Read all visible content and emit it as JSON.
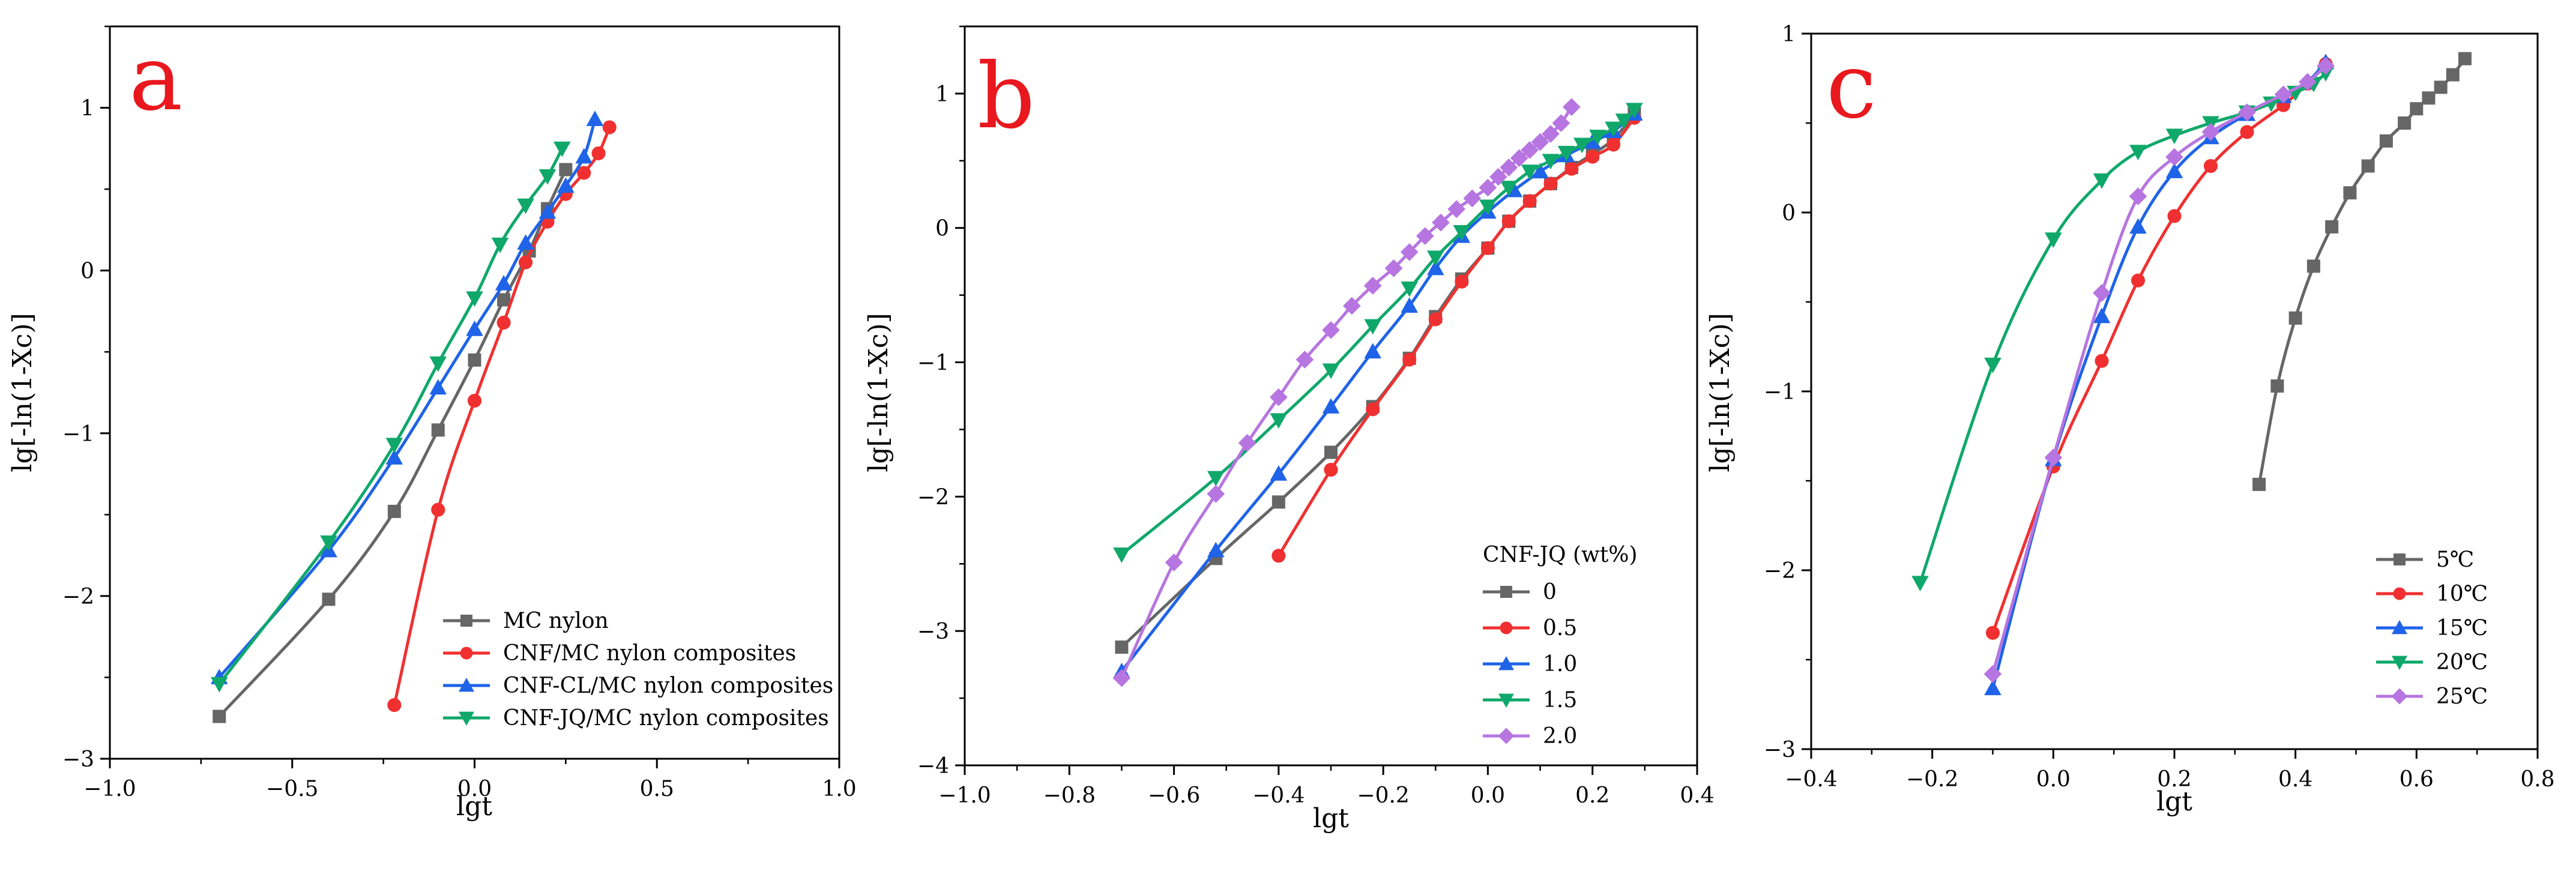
{
  "chart_data": [
    {
      "type": "line",
      "panel_label": "a",
      "xlabel": "lgt",
      "ylabel": "lg[-ln(1-Xc)]",
      "xlim": [
        -1.0,
        1.0
      ],
      "ylim": [
        -3,
        1.5
      ],
      "xticks": [
        -1.0,
        -0.5,
        0.0,
        0.5,
        1.0
      ],
      "xtick_labels": [
        "−1.0",
        "−0.5",
        "0.0",
        "0.5",
        "1.0"
      ],
      "yticks": [
        -3,
        -2,
        -1,
        0,
        1
      ],
      "ytick_labels": [
        "−3",
        "−2",
        "−1",
        "0",
        "1"
      ],
      "legend_title": "",
      "legend_position": "bottom-right",
      "series": [
        {
          "name": "MC nylon",
          "color": "#666666",
          "marker": "square",
          "x": [
            -0.7,
            -0.4,
            -0.22,
            -0.1,
            0.0,
            0.08,
            0.15,
            0.2,
            0.25
          ],
          "y": [
            -2.74,
            -2.02,
            -1.48,
            -0.98,
            -0.55,
            -0.18,
            0.12,
            0.38,
            0.62
          ]
        },
        {
          "name": "CNF/MC nylon composites",
          "color": "#f03030",
          "marker": "circle",
          "x": [
            -0.22,
            -0.1,
            0.0,
            0.08,
            0.14,
            0.2,
            0.25,
            0.3,
            0.34,
            0.37
          ],
          "y": [
            -2.67,
            -1.47,
            -0.8,
            -0.32,
            0.05,
            0.3,
            0.47,
            0.6,
            0.72,
            0.88
          ]
        },
        {
          "name": "CNF-CL/MC nylon composites",
          "color": "#1f63e8",
          "marker": "triangle-up",
          "x": [
            -0.7,
            -0.4,
            -0.22,
            -0.1,
            0.0,
            0.08,
            0.14,
            0.2,
            0.25,
            0.3,
            0.33
          ],
          "y": [
            -2.5,
            -1.72,
            -1.15,
            -0.72,
            -0.36,
            -0.08,
            0.17,
            0.36,
            0.52,
            0.7,
            0.93
          ]
        },
        {
          "name": "CNF-JQ/MC nylon composites",
          "color": "#0fa86a",
          "marker": "triangle-down",
          "x": [
            -0.7,
            -0.4,
            -0.22,
            -0.1,
            0.0,
            0.07,
            0.14,
            0.2,
            0.24
          ],
          "y": [
            -2.54,
            -1.67,
            -1.07,
            -0.57,
            -0.17,
            0.16,
            0.4,
            0.58,
            0.75
          ]
        }
      ]
    },
    {
      "type": "line",
      "panel_label": "b",
      "xlabel": "lgt",
      "ylabel": "lg[-ln(1-Xc)]",
      "xlim": [
        -1.0,
        0.4
      ],
      "ylim": [
        -4,
        1.5
      ],
      "xticks": [
        -1.0,
        -0.8,
        -0.6,
        -0.4,
        -0.2,
        0.0,
        0.2,
        0.4
      ],
      "xtick_labels": [
        "−1.0",
        "−0.8",
        "−0.6",
        "−0.4",
        "−0.2",
        "0.0",
        "0.2",
        "0.4"
      ],
      "yticks": [
        -4,
        -3,
        -2,
        -1,
        0,
        1
      ],
      "ytick_labels": [
        "−4",
        "−3",
        "−2",
        "−1",
        "0",
        "1"
      ],
      "legend_title": "CNF-JQ  (wt%)",
      "legend_position": "bottom-right",
      "series": [
        {
          "name": "0",
          "color": "#666666",
          "marker": "square",
          "x": [
            -0.7,
            -0.52,
            -0.4,
            -0.3,
            -0.22,
            -0.15,
            -0.1,
            -0.05,
            0.0,
            0.04,
            0.08,
            0.12,
            0.16,
            0.2,
            0.24,
            0.28
          ],
          "y": [
            -3.12,
            -2.46,
            -2.04,
            -1.67,
            -1.33,
            -0.97,
            -0.66,
            -0.38,
            -0.15,
            0.05,
            0.2,
            0.33,
            0.45,
            0.55,
            0.66,
            0.85
          ]
        },
        {
          "name": "0.5",
          "color": "#f03030",
          "marker": "circle",
          "x": [
            -0.4,
            -0.3,
            -0.22,
            -0.15,
            -0.1,
            -0.05,
            0.0,
            0.04,
            0.08,
            0.12,
            0.16,
            0.2,
            0.24,
            0.28
          ],
          "y": [
            -2.44,
            -1.8,
            -1.35,
            -0.98,
            -0.68,
            -0.4,
            -0.15,
            0.05,
            0.2,
            0.33,
            0.44,
            0.53,
            0.62,
            0.82
          ]
        },
        {
          "name": "1.0",
          "color": "#1f63e8",
          "marker": "triangle-up",
          "x": [
            -0.7,
            -0.52,
            -0.4,
            -0.3,
            -0.22,
            -0.15,
            -0.1,
            -0.05,
            0.0,
            0.05,
            0.1,
            0.15,
            0.2,
            0.24,
            0.28
          ],
          "y": [
            -3.3,
            -2.4,
            -1.83,
            -1.33,
            -0.92,
            -0.58,
            -0.3,
            -0.06,
            0.12,
            0.28,
            0.42,
            0.54,
            0.64,
            0.72,
            0.85
          ]
        },
        {
          "name": "1.5",
          "color": "#0fa86a",
          "marker": "triangle-down",
          "x": [
            -0.7,
            -0.52,
            -0.4,
            -0.3,
            -0.22,
            -0.15,
            -0.1,
            -0.05,
            0.0,
            0.04,
            0.08,
            0.12,
            0.15,
            0.18,
            0.21,
            0.24,
            0.26,
            0.28
          ],
          "y": [
            -2.43,
            -1.86,
            -1.43,
            -1.06,
            -0.73,
            -0.45,
            -0.22,
            -0.03,
            0.16,
            0.3,
            0.42,
            0.5,
            0.56,
            0.62,
            0.68,
            0.74,
            0.8,
            0.88
          ]
        },
        {
          "name": "2.0",
          "color": "#b675e0",
          "marker": "diamond",
          "x": [
            -0.7,
            -0.6,
            -0.52,
            -0.46,
            -0.4,
            -0.35,
            -0.3,
            -0.26,
            -0.22,
            -0.18,
            -0.15,
            -0.12,
            -0.09,
            -0.06,
            -0.03,
            0.0,
            0.02,
            0.04,
            0.06,
            0.08,
            0.1,
            0.12,
            0.14,
            0.16
          ],
          "y": [
            -3.35,
            -2.49,
            -1.98,
            -1.6,
            -1.26,
            -0.98,
            -0.76,
            -0.58,
            -0.43,
            -0.3,
            -0.18,
            -0.06,
            0.04,
            0.14,
            0.22,
            0.3,
            0.38,
            0.45,
            0.52,
            0.58,
            0.64,
            0.7,
            0.78,
            0.9
          ]
        }
      ]
    },
    {
      "type": "line",
      "panel_label": "c",
      "xlabel": "lgt",
      "ylabel": "lg[-ln(1-Xc)]",
      "xlim": [
        -0.4,
        0.8
      ],
      "ylim": [
        -3,
        1
      ],
      "xticks": [
        -0.4,
        -0.2,
        0.0,
        0.2,
        0.4,
        0.6,
        0.8
      ],
      "xtick_labels": [
        "−0.4",
        "−0.2",
        "0.0",
        "0.2",
        "0.4",
        "0.6",
        "0.8"
      ],
      "yticks": [
        -3,
        -2,
        -1,
        0,
        1
      ],
      "ytick_labels": [
        "−3",
        "−2",
        "−1",
        "0",
        "1"
      ],
      "legend_title": "",
      "legend_position": "bottom-right",
      "series": [
        {
          "name": "5℃",
          "color": "#666666",
          "marker": "square",
          "x": [
            0.34,
            0.37,
            0.4,
            0.43,
            0.46,
            0.49,
            0.52,
            0.55,
            0.58,
            0.6,
            0.62,
            0.64,
            0.66,
            0.68
          ],
          "y": [
            -1.52,
            -0.97,
            -0.59,
            -0.3,
            -0.08,
            0.11,
            0.26,
            0.4,
            0.5,
            0.58,
            0.64,
            0.7,
            0.77,
            0.86
          ]
        },
        {
          "name": "10℃",
          "color": "#f03030",
          "marker": "circle",
          "x": [
            -0.1,
            0.0,
            0.08,
            0.14,
            0.2,
            0.26,
            0.32,
            0.38,
            0.42,
            0.45
          ],
          "y": [
            -2.35,
            -1.42,
            -0.83,
            -0.38,
            -0.02,
            0.26,
            0.45,
            0.6,
            0.72,
            0.83
          ]
        },
        {
          "name": "15℃",
          "color": "#1f63e8",
          "marker": "triangle-up",
          "x": [
            -0.1,
            0.0,
            0.08,
            0.14,
            0.2,
            0.26,
            0.32,
            0.38,
            0.42,
            0.45
          ],
          "y": [
            -2.66,
            -1.38,
            -0.58,
            -0.08,
            0.23,
            0.42,
            0.55,
            0.65,
            0.73,
            0.84
          ]
        },
        {
          "name": "20℃",
          "color": "#0fa86a",
          "marker": "triangle-down",
          "x": [
            -0.22,
            -0.1,
            0.0,
            0.08,
            0.14,
            0.2,
            0.26,
            0.32,
            0.36,
            0.4,
            0.43,
            0.45
          ],
          "y": [
            -2.07,
            -0.85,
            -0.15,
            0.18,
            0.34,
            0.43,
            0.5,
            0.56,
            0.61,
            0.67,
            0.72,
            0.78
          ]
        },
        {
          "name": "25℃",
          "color": "#b675e0",
          "marker": "diamond",
          "x": [
            -0.1,
            0.0,
            0.08,
            0.14,
            0.2,
            0.26,
            0.32,
            0.38,
            0.42,
            0.45
          ],
          "y": [
            -2.58,
            -1.37,
            -0.45,
            0.09,
            0.31,
            0.45,
            0.56,
            0.66,
            0.73,
            0.82
          ]
        }
      ]
    }
  ]
}
